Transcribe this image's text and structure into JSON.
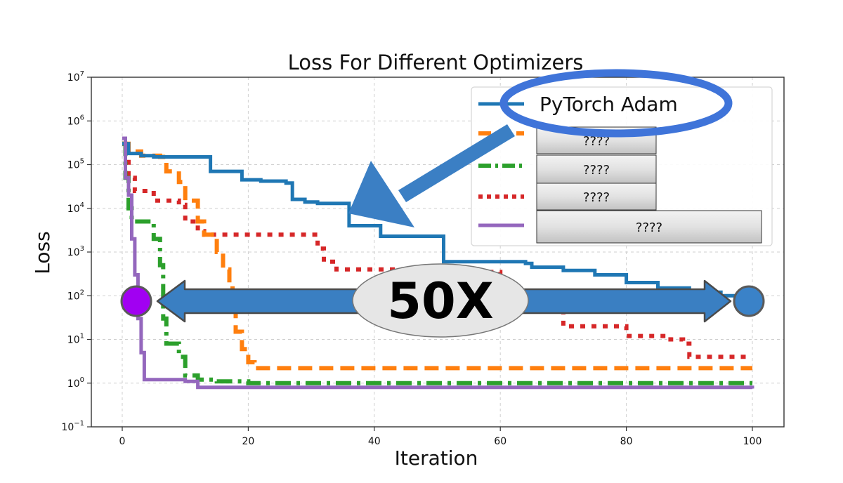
{
  "chart_data": {
    "type": "line",
    "title": "Loss For Different Optimizers",
    "xlabel": "Iteration",
    "ylabel": "Loss",
    "xlim": [
      -5,
      105
    ],
    "ylim_log10": [
      -1,
      7
    ],
    "y_scale": "log",
    "grid": true,
    "legend_position": "top-right",
    "x_ticks": [
      0,
      20,
      40,
      60,
      80,
      100
    ],
    "y_ticks_exp": [
      -1,
      0,
      1,
      2,
      3,
      4,
      5,
      6,
      7
    ],
    "series": [
      {
        "name": "PyTorch Adam",
        "color": "#1f77b4",
        "style": "solid",
        "points": [
          [
            0,
            300000
          ],
          [
            1,
            180000
          ],
          [
            3,
            160000
          ],
          [
            5,
            150000
          ],
          [
            10,
            150000
          ],
          [
            13,
            150000
          ],
          [
            14,
            70000
          ],
          [
            18,
            70000
          ],
          [
            19,
            45000
          ],
          [
            22,
            42000
          ],
          [
            26,
            38000
          ],
          [
            27,
            16000
          ],
          [
            29,
            14000
          ],
          [
            31,
            13000
          ],
          [
            35,
            13000
          ],
          [
            36,
            4000
          ],
          [
            40,
            4000
          ],
          [
            41,
            2300
          ],
          [
            50,
            2300
          ],
          [
            51,
            600
          ],
          [
            63,
            600
          ],
          [
            64,
            550
          ],
          [
            65,
            450
          ],
          [
            70,
            380
          ],
          [
            75,
            300
          ],
          [
            80,
            200
          ],
          [
            85,
            150
          ],
          [
            90,
            120
          ],
          [
            95,
            100
          ],
          [
            100,
            90
          ]
        ]
      },
      {
        "name": "????",
        "color": "#ff7f0e",
        "style": "dashed",
        "points": [
          [
            0,
            300000
          ],
          [
            1,
            200000
          ],
          [
            3,
            160000
          ],
          [
            6,
            150000
          ],
          [
            7,
            70000
          ],
          [
            9,
            40000
          ],
          [
            10,
            15000
          ],
          [
            12,
            5000
          ],
          [
            13,
            2500
          ],
          [
            15,
            1000
          ],
          [
            16,
            400
          ],
          [
            17,
            200
          ],
          [
            17.5,
            70
          ],
          [
            18,
            15
          ],
          [
            19,
            6
          ],
          [
            20,
            3
          ],
          [
            21,
            2.2
          ],
          [
            100,
            2.2
          ]
        ]
      },
      {
        "name": "????",
        "color": "#2ca02c",
        "style": "dashdot",
        "points": [
          [
            0,
            300000
          ],
          [
            0.5,
            50000
          ],
          [
            1,
            10000
          ],
          [
            1.5,
            5000
          ],
          [
            4,
            5000
          ],
          [
            5,
            2000
          ],
          [
            6,
            500
          ],
          [
            6.5,
            30
          ],
          [
            7,
            8
          ],
          [
            9,
            4
          ],
          [
            10,
            1.5
          ],
          [
            12,
            1.2
          ],
          [
            15,
            1.1
          ],
          [
            20,
            1.0
          ],
          [
            100,
            1.0
          ]
        ]
      },
      {
        "name": "????",
        "color": "#d62728",
        "style": "dotted",
        "points": [
          [
            0,
            300000
          ],
          [
            1,
            50000
          ],
          [
            2,
            25000
          ],
          [
            5,
            15000
          ],
          [
            9,
            12000
          ],
          [
            10,
            5000
          ],
          [
            12,
            3000
          ],
          [
            13,
            2500
          ],
          [
            15,
            2500
          ],
          [
            30,
            2500
          ],
          [
            31,
            1200
          ],
          [
            32,
            600
          ],
          [
            34,
            400
          ],
          [
            45,
            380
          ],
          [
            50,
            350
          ],
          [
            60,
            100
          ],
          [
            65,
            50
          ],
          [
            70,
            20
          ],
          [
            80,
            12
          ],
          [
            87,
            10
          ],
          [
            89,
            8
          ],
          [
            90,
            4
          ],
          [
            95,
            4
          ],
          [
            99,
            4
          ]
        ]
      },
      {
        "name": "????",
        "color": "#9467bd",
        "style": "solid",
        "points": [
          [
            0,
            400000
          ],
          [
            0.5,
            50000
          ],
          [
            1,
            20000
          ],
          [
            1.5,
            2000
          ],
          [
            2,
            300
          ],
          [
            2.5,
            30
          ],
          [
            3,
            5
          ],
          [
            3.5,
            1.2
          ],
          [
            10,
            1.1
          ],
          [
            12,
            0.8
          ],
          [
            100,
            0.75
          ]
        ]
      }
    ],
    "annotations": {
      "highlight_label": "PyTorch Adam",
      "speedup_label": "50X",
      "speedup_y": 100,
      "speedup_from_x": 2.5,
      "speedup_to_x": 100
    }
  }
}
